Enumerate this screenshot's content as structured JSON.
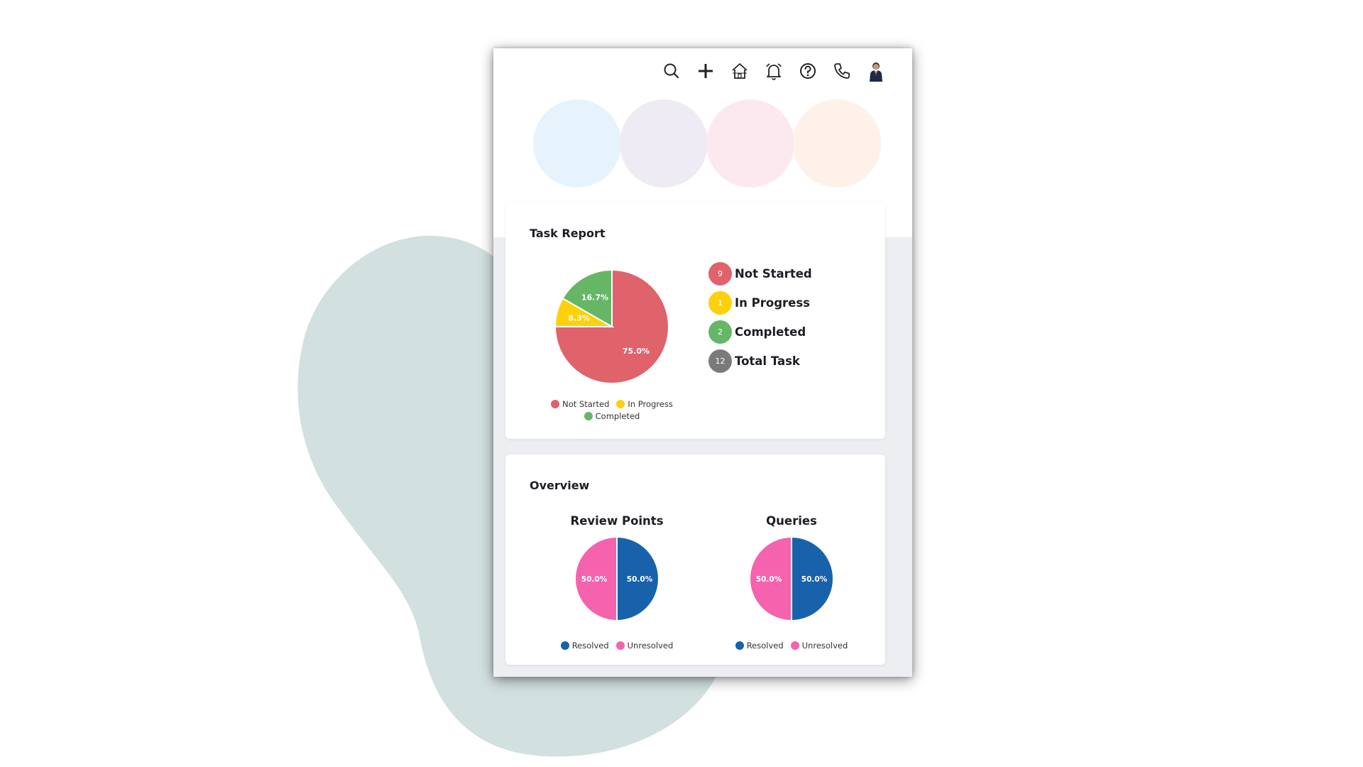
{
  "colors": {
    "blob": "#d2e0df",
    "not_started": "#e0626b",
    "in_progress": "#fcd10a",
    "completed": "#65b766",
    "total": "#7a7a7a",
    "resolved": "#1862ab",
    "unresolved": "#f562ad"
  },
  "topbar": {
    "icons": [
      "search-icon",
      "plus-icon",
      "home-icon",
      "bell-icon",
      "help-icon",
      "phone-icon",
      "avatar"
    ]
  },
  "summary_circles": [
    "#e7f3fc",
    "#eeebf5",
    "#fce9ef",
    "#fdf1e9"
  ],
  "task_report": {
    "title": "Task Report",
    "status_items": [
      {
        "count": "9",
        "label": "Not Started",
        "color": "#e0626b"
      },
      {
        "count": "1",
        "label": "In Progress",
        "color": "#fcd10a"
      },
      {
        "count": "2",
        "label": "Completed",
        "color": "#65b766"
      },
      {
        "count": "12",
        "label": "Total Task",
        "color": "#7a7a7a"
      }
    ]
  },
  "overview": {
    "title": "Overview",
    "review_points_title": "Review Points",
    "queries_title": "Queries"
  },
  "chart_data": [
    {
      "type": "pie",
      "categories": [
        "Not Started",
        "In Progress",
        "Completed"
      ],
      "values": [
        75.0,
        8.3,
        16.7
      ],
      "labels": [
        "75.0%",
        "8.3%",
        "16.7%"
      ],
      "colors": [
        "#e0626b",
        "#fcd10a",
        "#65b766"
      ],
      "legend": [
        "Not Started",
        "In Progress",
        "Completed"
      ],
      "legend_position": "bottom"
    },
    {
      "type": "pie",
      "title": "Review Points",
      "categories": [
        "Resolved",
        "Unresolved"
      ],
      "values": [
        50.0,
        50.0
      ],
      "labels": [
        "50.0%",
        "50.0%"
      ],
      "colors": [
        "#1862ab",
        "#f562ad"
      ],
      "legend": [
        "Resolved",
        "Unresolved"
      ],
      "legend_position": "bottom"
    },
    {
      "type": "pie",
      "title": "Queries",
      "categories": [
        "Resolved",
        "Unresolved"
      ],
      "values": [
        50.0,
        50.0
      ],
      "labels": [
        "50.0%",
        "50.0%"
      ],
      "colors": [
        "#1862ab",
        "#f562ad"
      ],
      "legend": [
        "Resolved",
        "Unresolved"
      ],
      "legend_position": "bottom"
    }
  ]
}
